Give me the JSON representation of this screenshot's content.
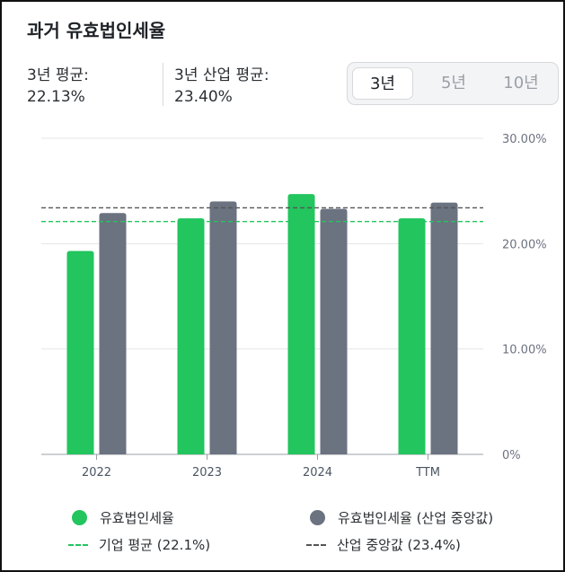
{
  "title": "과거 유효법인세율",
  "stats": [
    {
      "label": "3년 평균:",
      "value": "22.13%"
    },
    {
      "label": "3년 산업 평균:",
      "value": "23.40%"
    }
  ],
  "period_tabs": [
    {
      "label": "3년",
      "active": true
    },
    {
      "label": "5년",
      "active": false
    },
    {
      "label": "10년",
      "active": false
    }
  ],
  "colors": {
    "company": "#22c55e",
    "industry": "#6b7280",
    "avg_company": "#22c55e",
    "avg_industry": "#555555"
  },
  "chart_data": {
    "type": "bar",
    "categories": [
      "2022",
      "2023",
      "2024",
      "TTM"
    ],
    "series": [
      {
        "name": "유효법인세율",
        "values": [
          19.3,
          22.4,
          24.7,
          22.4
        ]
      },
      {
        "name": "유효법인세율 (산업 중앙값)",
        "values": [
          22.9,
          24.0,
          23.3,
          23.9
        ]
      }
    ],
    "reference_lines": [
      {
        "name": "기업 평균 (22.1%)",
        "value": 22.1
      },
      {
        "name": "산업 중앙값 (23.4%)",
        "value": 23.4
      }
    ],
    "ylim": [
      0,
      30
    ],
    "yticks": [
      {
        "value": 0,
        "label": "0%"
      },
      {
        "value": 10,
        "label": "10.00%"
      },
      {
        "value": 20,
        "label": "20.00%"
      },
      {
        "value": 30,
        "label": "30.00%"
      }
    ],
    "grid": true,
    "legend": "bottom"
  }
}
